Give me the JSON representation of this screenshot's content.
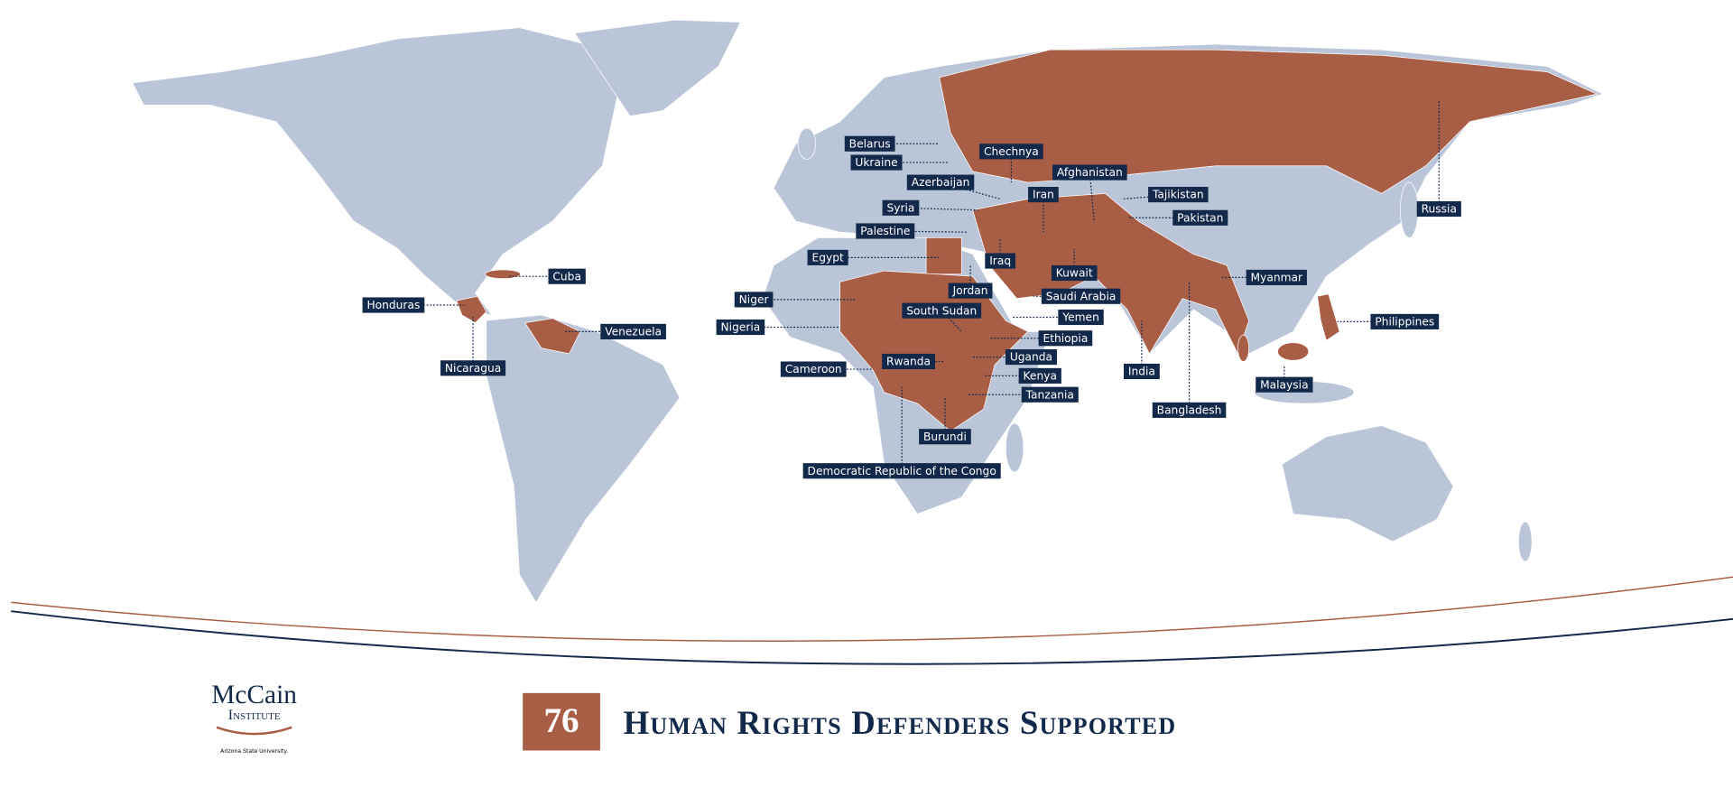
{
  "map": {
    "labels": [
      "Belarus",
      "Ukraine",
      "Chechnya",
      "Azerbaijan",
      "Afghanistan",
      "Iran",
      "Tajikistan",
      "Syria",
      "Pakistan",
      "Palestine",
      "Egypt",
      "Iraq",
      "Kuwait",
      "Jordan",
      "Saudi Arabia",
      "Myanmar",
      "Cuba",
      "Honduras",
      "Niger",
      "South Sudan",
      "Yemen",
      "Venezuela",
      "Philippines",
      "Nigeria",
      "Ethiopia",
      "Uganda",
      "Rwanda",
      "Cameroon",
      "India",
      "Nicaragua",
      "Kenya",
      "Malaysia",
      "Tanzania",
      "Bangladesh",
      "Burundi",
      "Democratic Republic of the Congo",
      "Russia"
    ]
  },
  "footer": {
    "logo_name": "McCain",
    "logo_sub": "Institute",
    "logo_affiliation": "Arizona State University.",
    "count": 76,
    "caption": "Human Rights Defenders Supported"
  }
}
